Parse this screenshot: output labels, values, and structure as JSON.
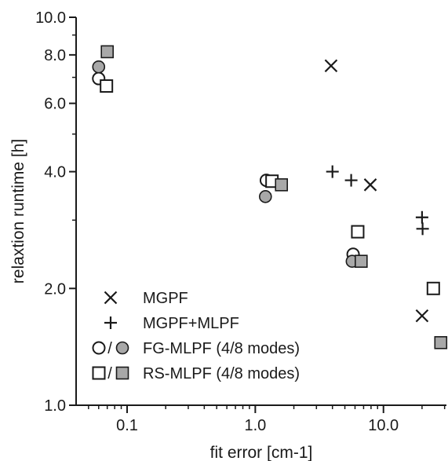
{
  "chart_data": {
    "type": "scatter",
    "xlabel": "fit error [cm-1]",
    "ylabel": "relaxtion runtime [h]",
    "xscale": "log",
    "yscale": "log",
    "xlim": [
      0.04,
      31
    ],
    "ylim": [
      1.0,
      10.0
    ],
    "x_ticks": [
      0.1,
      1.0,
      10.0
    ],
    "x_tick_labels": [
      "0.1",
      "1.0",
      "10.0"
    ],
    "y_ticks": [
      1.0,
      2.0,
      4.0,
      6.0,
      8.0,
      10.0
    ],
    "y_tick_labels": [
      "1.0",
      "2.0",
      "4.0",
      "6.0",
      "8.0",
      "10.0"
    ],
    "grid": false,
    "legend_position": "bottom-left",
    "series": [
      {
        "name": "MGPF",
        "legend_label": "MGPF",
        "marker": "x",
        "color": "#1a1a1a",
        "points": [
          [
            3.9,
            7.5
          ],
          [
            7.9,
            3.7
          ],
          [
            20.0,
            1.7
          ]
        ]
      },
      {
        "name": "MGPF+MLPF",
        "legend_label": "MGPF+MLPF",
        "marker": "plus",
        "color": "#1a1a1a",
        "points": [
          [
            4.0,
            4.0
          ],
          [
            5.6,
            3.8
          ],
          [
            20.0,
            3.05
          ],
          [
            20.2,
            2.85
          ]
        ]
      },
      {
        "name": "FG-MLPF 4 modes",
        "marker": "circle-open",
        "color": "#1a1a1a",
        "points": [
          [
            0.06,
            6.95
          ],
          [
            1.22,
            3.8
          ],
          [
            5.8,
            2.45
          ]
        ]
      },
      {
        "name": "FG-MLPF 8 modes",
        "marker": "circle-filled",
        "color": "#a8a8a8",
        "points": [
          [
            0.06,
            7.45
          ],
          [
            1.2,
            3.45
          ],
          [
            5.7,
            2.35
          ]
        ]
      },
      {
        "name": "RS-MLPF 4 modes",
        "marker": "square-open",
        "color": "#1a1a1a",
        "points": [
          [
            0.069,
            6.65
          ],
          [
            1.35,
            3.78
          ],
          [
            6.3,
            2.8
          ],
          [
            24.5,
            2.0
          ]
        ]
      },
      {
        "name": "RS-MLPF 8 modes",
        "marker": "square-filled",
        "color": "#a8a8a8",
        "points": [
          [
            0.07,
            8.15
          ],
          [
            1.6,
            3.7
          ],
          [
            6.7,
            2.35
          ],
          [
            28.0,
            1.45
          ]
        ]
      }
    ],
    "legend": [
      {
        "label": "MGPF",
        "markers": [
          "x"
        ]
      },
      {
        "label": "MGPF+MLPF",
        "markers": [
          "plus"
        ]
      },
      {
        "label": "FG-MLPF (4/8 modes)",
        "markers": [
          "circle-open",
          "circle-filled"
        ]
      },
      {
        "label": "RS-MLPF (4/8 modes)",
        "markers": [
          "square-open",
          "square-filled"
        ]
      }
    ]
  }
}
